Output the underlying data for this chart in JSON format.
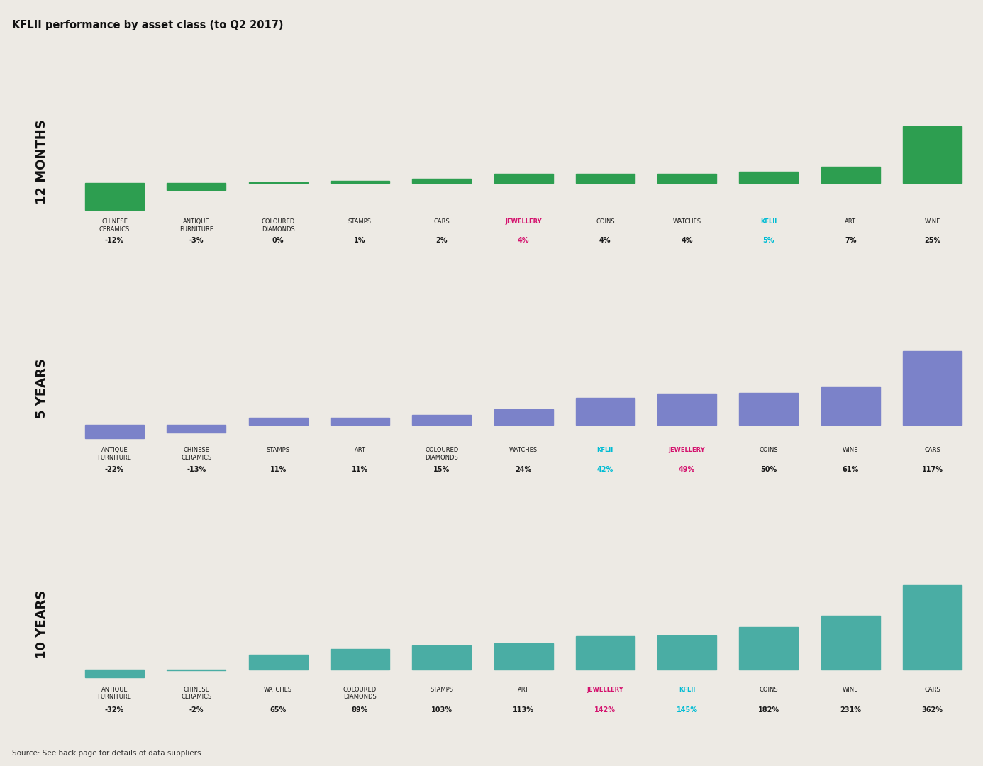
{
  "title": "KFLII performance by asset class (to Q2 2017)",
  "source_text": "Source: See back page for details of data suppliers",
  "bg_color": "#edeae4",
  "sections": [
    {
      "label": "12 MONTHS",
      "bar_color": "#2d9e50",
      "items": [
        {
          "name": "CHINESE\nCERAMICS",
          "value": -12,
          "label": "-12%",
          "highlight": false,
          "icon": "🏺"
        },
        {
          "name": "ANTIQUE\nFURNITURE",
          "value": -3,
          "label": "-3%",
          "highlight": false,
          "icon": "🪑"
        },
        {
          "name": "COLOURED\nDIAMONDS",
          "value": 0,
          "label": "0%",
          "highlight": false,
          "icon": "💎"
        },
        {
          "name": "STAMPS",
          "value": 1,
          "label": "1%",
          "highlight": false,
          "icon": "📦"
        },
        {
          "name": "CARS",
          "value": 2,
          "label": "2%",
          "highlight": false,
          "icon": "🚗"
        },
        {
          "name": "JEWELLERY",
          "value": 4,
          "label": "4%",
          "highlight": "pink",
          "icon": "💍"
        },
        {
          "name": "COINS",
          "value": 4,
          "label": "4%",
          "highlight": false,
          "icon": "🪙"
        },
        {
          "name": "WATCHES",
          "value": 4,
          "label": "4%",
          "highlight": false,
          "icon": "⌚"
        },
        {
          "name": "KFLII",
          "value": 5,
          "label": "5%",
          "highlight": "cyan",
          "icon": "💼"
        },
        {
          "name": "ART",
          "value": 7,
          "label": "7%",
          "highlight": false,
          "icon": "🖼"
        },
        {
          "name": "WINE",
          "value": 25,
          "label": "25%",
          "highlight": false,
          "icon": "🍷"
        }
      ]
    },
    {
      "label": "5 YEARS",
      "bar_color": "#7b82c9",
      "items": [
        {
          "name": "ANTIQUE\nFURNITURE",
          "value": -22,
          "label": "-22%",
          "highlight": false,
          "icon": "🪑"
        },
        {
          "name": "CHINESE\nCERAMICS",
          "value": -13,
          "label": "-13%",
          "highlight": false,
          "icon": "🏺"
        },
        {
          "name": "STAMPS",
          "value": 11,
          "label": "11%",
          "highlight": false,
          "icon": "📦"
        },
        {
          "name": "ART",
          "value": 11,
          "label": "11%",
          "highlight": false,
          "icon": "🖼"
        },
        {
          "name": "COLOURED\nDIAMONDS",
          "value": 15,
          "label": "15%",
          "highlight": false,
          "icon": "💎"
        },
        {
          "name": "WATCHES",
          "value": 24,
          "label": "24%",
          "highlight": false,
          "icon": "⌚"
        },
        {
          "name": "KFLII",
          "value": 42,
          "label": "42%",
          "highlight": "cyan",
          "icon": "💼"
        },
        {
          "name": "JEWELLERY",
          "value": 49,
          "label": "49%",
          "highlight": "pink",
          "icon": "💍"
        },
        {
          "name": "COINS",
          "value": 50,
          "label": "50%",
          "highlight": false,
          "icon": "🪙"
        },
        {
          "name": "WINE",
          "value": 61,
          "label": "61%",
          "highlight": false,
          "icon": "🍷"
        },
        {
          "name": "CARS",
          "value": 117,
          "label": "117%",
          "highlight": false,
          "icon": "🚗"
        }
      ]
    },
    {
      "label": "10 YEARS",
      "bar_color": "#4aada4",
      "items": [
        {
          "name": "ANTIQUE\nFURNITURE",
          "value": -32,
          "label": "-32%",
          "highlight": false,
          "icon": "🪑"
        },
        {
          "name": "CHINESE\nCERAMICS",
          "value": -2,
          "label": "-2%",
          "highlight": false,
          "icon": "🏺"
        },
        {
          "name": "WATCHES",
          "value": 65,
          "label": "65%",
          "highlight": false,
          "icon": "⌚"
        },
        {
          "name": "COLOURED\nDIAMONDS",
          "value": 89,
          "label": "89%",
          "highlight": false,
          "icon": "💎"
        },
        {
          "name": "STAMPS",
          "value": 103,
          "label": "103%",
          "highlight": false,
          "icon": "📦"
        },
        {
          "name": "ART",
          "value": 113,
          "label": "113%",
          "highlight": false,
          "icon": "🖼"
        },
        {
          "name": "JEWELLERY",
          "value": 142,
          "label": "142%",
          "highlight": "pink",
          "icon": "💍"
        },
        {
          "name": "KFLII",
          "value": 145,
          "label": "145%",
          "highlight": "cyan",
          "icon": "💼"
        },
        {
          "name": "COINS",
          "value": 182,
          "label": "182%",
          "highlight": false,
          "icon": "🪙"
        },
        {
          "name": "WINE",
          "value": 231,
          "label": "231%",
          "highlight": false,
          "icon": "🍷"
        },
        {
          "name": "CARS",
          "value": 362,
          "label": "362%",
          "highlight": false,
          "icon": "🚗"
        }
      ]
    }
  ],
  "dark_teal": "#1e5f6e",
  "pink_highlight": "#d4136e",
  "cyan_highlight": "#00bcd4",
  "icon_color": "#1e5f6e",
  "divider_color": "#c8c4be"
}
